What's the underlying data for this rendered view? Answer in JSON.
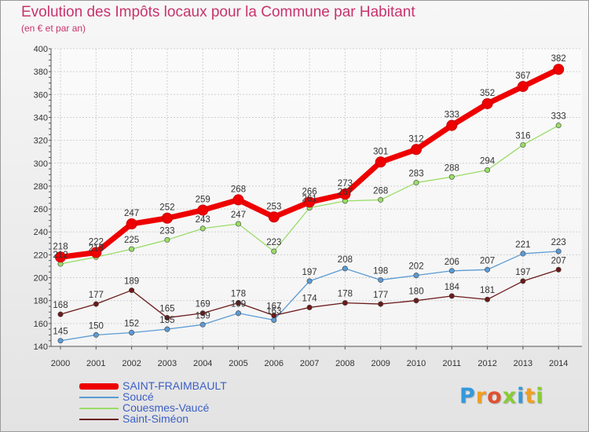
{
  "header": {
    "title": "Evolution des Impôts locaux pour la Commune par Habitant",
    "subtitle": "(en € et par an)"
  },
  "chart_data": {
    "type": "line",
    "title": "Evolution des Impôts locaux pour la Commune par Habitant",
    "subtitle": "(en € et par an)",
    "x": [
      2000,
      2001,
      2002,
      2003,
      2004,
      2005,
      2006,
      2007,
      2008,
      2009,
      2010,
      2011,
      2012,
      2013,
      2014
    ],
    "ylim": [
      140,
      400
    ],
    "yticks": [
      140,
      160,
      180,
      200,
      220,
      240,
      260,
      280,
      300,
      320,
      340,
      360,
      380,
      400
    ],
    "grid": true,
    "legend_position": "bottom-left",
    "series": [
      {
        "name": "SAINT-FRAIMBAULT",
        "color": "#ee0000",
        "values": [
          218,
          222,
          247,
          252,
          259,
          268,
          253,
          266,
          273,
          301,
          312,
          333,
          352,
          367,
          382
        ]
      },
      {
        "name": "Soucé",
        "color": "#5b9bd5",
        "values": [
          145,
          150,
          152,
          155,
          159,
          169,
          163,
          197,
          208,
          198,
          202,
          206,
          207,
          221,
          223
        ]
      },
      {
        "name": "Couesmes-Vaucé",
        "color": "#99dd66",
        "values": [
          212,
          218,
          225,
          233,
          243,
          247,
          223,
          261,
          267,
          268,
          283,
          288,
          294,
          316,
          333
        ]
      },
      {
        "name": "Saint-Siméon",
        "color": "#6b1a1a",
        "values": [
          168,
          177,
          189,
          165,
          169,
          178,
          167,
          174,
          178,
          177,
          180,
          184,
          181,
          197,
          207
        ]
      }
    ]
  },
  "legend": {
    "items": [
      {
        "label": "SAINT-FRAIMBAULT"
      },
      {
        "label": "Soucé"
      },
      {
        "label": "Couesmes-Vaucé"
      },
      {
        "label": "Saint-Siméon"
      }
    ]
  },
  "logo": {
    "text": "Proxiti",
    "colors": [
      "#3399dd",
      "#f0a020",
      "#e05030",
      "#88cc33",
      "#3399dd",
      "#f0a020",
      "#88cc33"
    ]
  }
}
